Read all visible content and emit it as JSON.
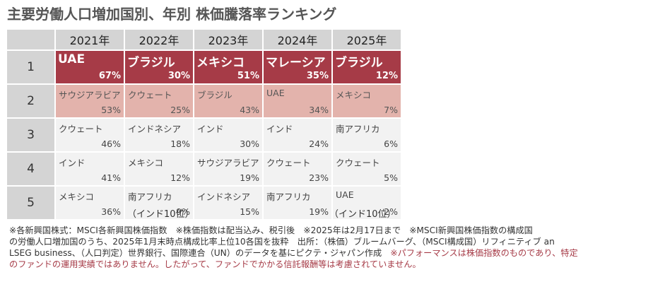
{
  "title": "主要労働人口増加国別、年別 株価騰落率ランキング",
  "years": [
    "2021年",
    "2022年",
    "2023年",
    "2024年",
    "2025年"
  ],
  "ranks": [
    "1",
    "2",
    "3",
    "4",
    "5"
  ],
  "rows": [
    [
      {
        "name": "UAE",
        "pct": "67%"
      },
      {
        "name": "ブラジル",
        "pct": "30%"
      },
      {
        "name": "メキシコ",
        "pct": "51%"
      },
      {
        "name": "マレーシア",
        "pct": "35%"
      },
      {
        "name": "ブラジル",
        "pct": "12%"
      }
    ],
    [
      {
        "name": "サウジアラビア",
        "pct": "53%"
      },
      {
        "name": "クウェート",
        "pct": "25%"
      },
      {
        "name": "ブラジル",
        "pct": "43%"
      },
      {
        "name": "UAE",
        "pct": "34%"
      },
      {
        "name": "メキシコ",
        "pct": "7%"
      }
    ],
    [
      {
        "name": "クウェート",
        "pct": "46%"
      },
      {
        "name": "インドネシア",
        "pct": "18%"
      },
      {
        "name": "インド",
        "pct": "30%"
      },
      {
        "name": "インド",
        "pct": "24%"
      },
      {
        "name": "南アフリカ",
        "pct": "6%"
      }
    ],
    [
      {
        "name": "インド",
        "pct": "41%"
      },
      {
        "name": "メキシコ",
        "pct": "12%"
      },
      {
        "name": "サウジアラビア",
        "pct": "19%"
      },
      {
        "name": "クウェート",
        "pct": "23%"
      },
      {
        "name": "クウェート",
        "pct": "5%"
      }
    ],
    [
      {
        "name": "メキシコ",
        "pct": "36%"
      },
      {
        "name": "南アフリカ",
        "pct": "9%"
      },
      {
        "name": "インドネシア",
        "pct": "15%"
      },
      {
        "name": "南アフリカ",
        "pct": "19%"
      },
      {
        "name": "UAE",
        "pct": "2%"
      }
    ]
  ],
  "below_notes": {
    "y2022": "（インド10位）",
    "y2025": "（インド10位）"
  },
  "footnote": {
    "line1": "※各新興国株式：MSCI各新興国株価指数　※株価指数は配当込み、税引後　※2025年は2月17日まで　※MSCI新興国株価指数の構成国",
    "line2": "の労働人口増加国のうち、2025年1月末時点構成比率上位10各国を抜粋　出所：（株価）ブルームバーグ、（MSCI構成国）リフィニティブ an",
    "line3": "LSEG business、（人口判定）世界銀行、国際連合（UN）のデータを基にピクテ・ジャパン作成",
    "line3_red": "　※パフォーマンスは株価指数のものであり、特定",
    "line4_red": "のファンドの運用実績ではありません。したがって、ファンドでかかる信託報酬等は考慮されていません。"
  },
  "colors": {
    "rank1": "#a63b47",
    "rank2": "#e3b3ac",
    "other": "#f2f2f2",
    "header": "#d4d4d4",
    "disclaimer": "#a63b47"
  }
}
